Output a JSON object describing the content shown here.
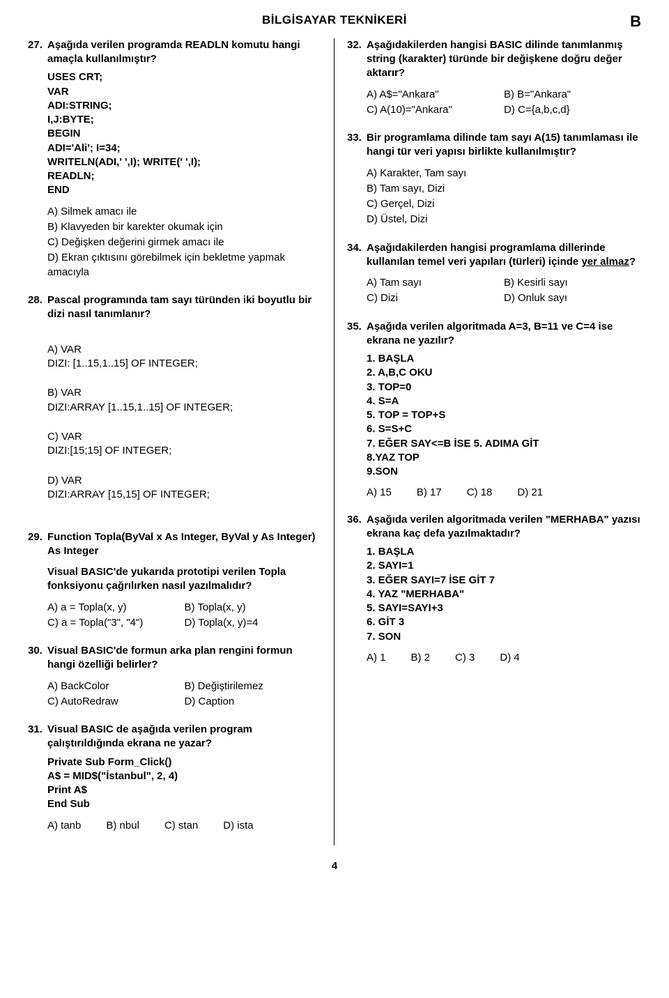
{
  "header": {
    "title": "BİLGİSAYAR TEKNİKERİ",
    "corner": "B"
  },
  "left": {
    "q27": {
      "num": "27.",
      "text": "Aşağıda verilen programda READLN komutu hangi amaçla kullanılmıştır?",
      "code": "USES CRT;\n   VAR\n      ADI:STRING;\n      I,J:BYTE;\n   BEGIN\n   ADI='Ali';  I=34;\n   WRITELN(ADI,'   ',I); WRITE('   ',I);\n   READLN;\n   END",
      "a": "A) Silmek amacı ile",
      "b": "B) Klavyeden bir karekter okumak için",
      "c": "C) Değişken değerini girmek amacı ile",
      "d": "D) Ekran çıktısını görebilmek için bekletme yapmak amacıyla"
    },
    "q28": {
      "num": "28.",
      "text": "Pascal programında tam sayı türünden iki boyutlu bir dizi nasıl tanımlanır?",
      "a": "A) VAR\n      DIZI: [1..15,1..15] OF INTEGER;",
      "b": "B) VAR\n      DIZI:ARRAY [1..15,1..15] OF INTEGER;",
      "c": "C) VAR\n      DIZI:[15;15] OF INTEGER;",
      "d": "D) VAR\n      DIZI:ARRAY [15,15] OF INTEGER;"
    },
    "q29": {
      "num": "29.",
      "text": "Function Topla(ByVal x As Integer, ByVal y As Integer) As Integer",
      "sub": "Visual BASIC'de yukarıda prototipi verilen Topla fonksiyonu çağrılırken nasıl yazılmalıdır?",
      "a": "A) a = Topla(x, y)",
      "b": "B) Topla(x, y)",
      "c": "C) a = Topla(\"3\", \"4\")",
      "d": "D) Topla(x, y)=4"
    },
    "q30": {
      "num": "30.",
      "text": "Visual BASIC'de formun arka plan rengini formun hangi özelliği belirler?",
      "a": "A) BackColor",
      "b": "B) Değiştirilemez",
      "c": "C) AutoRedraw",
      "d": "D) Caption"
    },
    "q31": {
      "num": "31.",
      "text": "Visual BASIC de aşağıda verilen program çalıştırıldığında ekrana ne yazar?",
      "code": "Private Sub Form_Click()\nA$ = MID$(\"İstanbul\", 2, 4)\nPrint A$\nEnd Sub",
      "a": "A) tanb",
      "b": "B) nbul",
      "c": "C) stan",
      "d": "D) ista"
    }
  },
  "right": {
    "q32": {
      "num": "32.",
      "text": "Aşağıdakilerden hangisi BASIC dilinde tanımlanmış string (karakter) türünde bir değişkene doğru değer aktarır?",
      "a": "A) A$=\"Ankara\"",
      "b": "B) B=\"Ankara\"",
      "c": "C) A(10)=\"Ankara\"",
      "d": "D) C={a,b,c,d}"
    },
    "q33": {
      "num": "33.",
      "text": "Bir programlama dilinde tam sayı A(15) tanımlaması ile hangi tür veri yapısı birlikte kullanılmıştır?",
      "a": "A) Karakter, Tam sayı",
      "b": "B) Tam sayı, Dizi",
      "c": "C) Gerçel, Dizi",
      "d": "D) Üstel, Dizi"
    },
    "q34": {
      "num": "34.",
      "text_pre": "Aşağıdakilerden hangisi programlama dillerinde kullanılan temel veri yapıları (türleri) içinde ",
      "text_under": "yer almaz",
      "text_post": "?",
      "a": "A) Tam sayı",
      "b": "B) Kesirli sayı",
      "c": "C) Dizi",
      "d": "D) Onluk sayı"
    },
    "q35": {
      "num": "35.",
      "text": "Aşağıda verilen algoritmada A=3, B=11 ve C=4 ise ekrana ne yazılır?",
      "code": "1. BAŞLA\n2. A,B,C OKU\n3. TOP=0\n4. S=A\n5. TOP = TOP+S\n6. S=S+C\n7. EĞER SAY<=B İSE 5. ADIMA GİT\n8.YAZ TOP\n9.SON",
      "a": "A) 15",
      "b": "B) 17",
      "c": "C) 18",
      "d": "D) 21"
    },
    "q36": {
      "num": "36.",
      "text": "Aşağıda verilen algoritmada verilen \"MERHABA\" yazısı ekrana kaç defa yazılmaktadır?",
      "code": "1. BAŞLA\n2. SAYI=1\n3. EĞER SAYI=7 İSE GİT 7\n4. YAZ \"MERHABA\"\n5. SAYI=SAYI+3\n6. GİT 3\n7. SON",
      "a": "A) 1",
      "b": "B) 2",
      "c": "C) 3",
      "d": "D) 4"
    }
  },
  "footer": {
    "page": "4"
  }
}
